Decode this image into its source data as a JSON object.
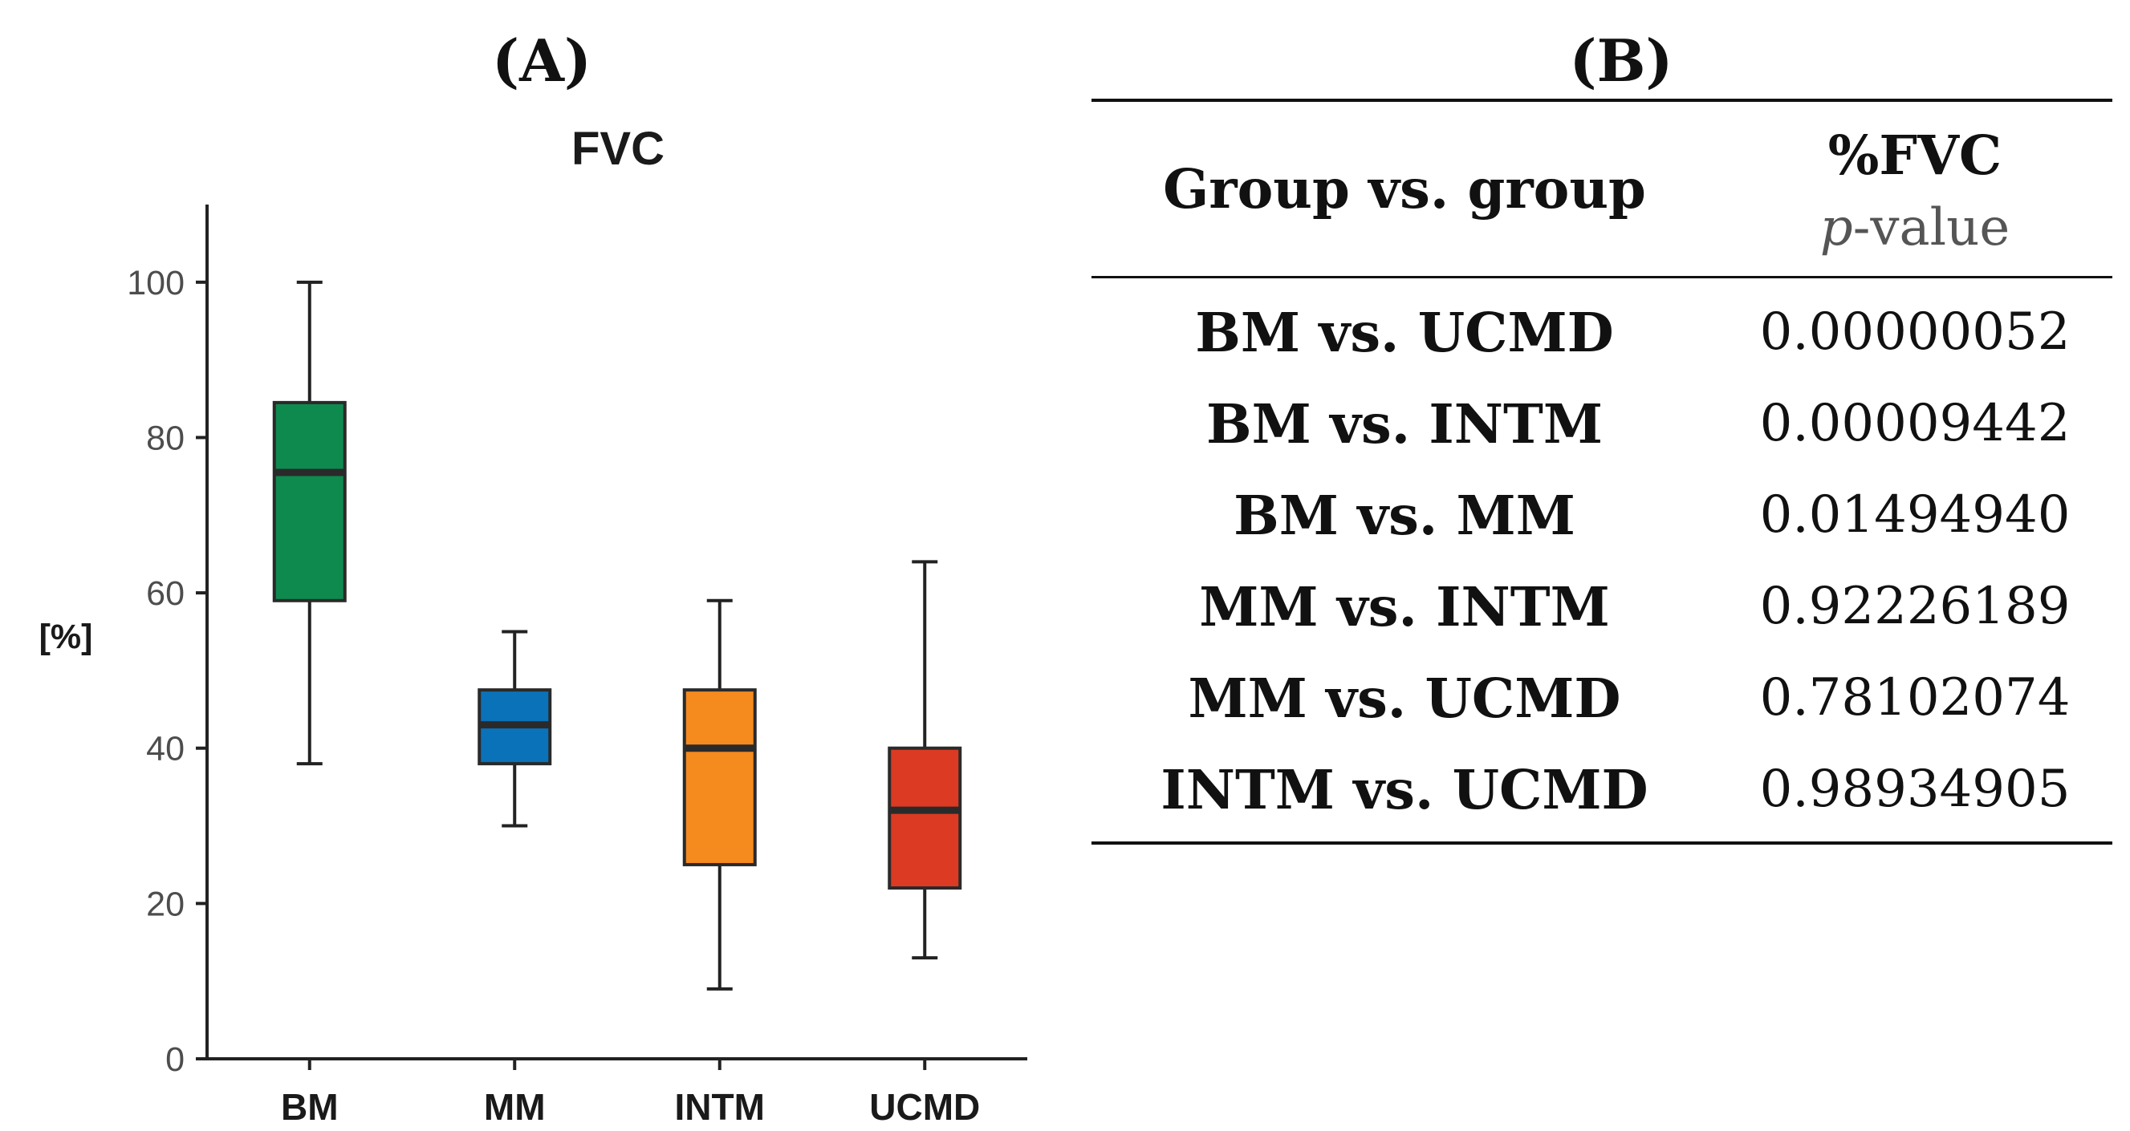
{
  "panel_a": {
    "label": "(A)"
  },
  "panel_b": {
    "label": "(B)"
  },
  "chart_data": {
    "type": "boxplot",
    "title": "FVC",
    "xlabel": "",
    "ylabel": "[%]",
    "ylim": [
      0,
      110
    ],
    "yticks": [
      0,
      20,
      40,
      60,
      80,
      100
    ],
    "categories": [
      "BM",
      "MM",
      "INTM",
      "UCMD"
    ],
    "colors": [
      "#0e8a4f",
      "#0a72b8",
      "#f58a1f",
      "#dc3a22"
    ],
    "boxes": [
      {
        "category": "BM",
        "min": 38,
        "q1": 59,
        "median": 75.5,
        "q3": 84.5,
        "max": 100
      },
      {
        "category": "MM",
        "min": 30,
        "q1": 38,
        "median": 43,
        "q3": 47.5,
        "max": 55
      },
      {
        "category": "INTM",
        "min": 9,
        "q1": 25,
        "median": 40,
        "q3": 47.5,
        "max": 59
      },
      {
        "category": "UCMD",
        "min": 13,
        "q1": 22,
        "median": 32,
        "q3": 40,
        "max": 64
      }
    ]
  },
  "table": {
    "header_group": "Group vs. group",
    "header_metric": "%FVC",
    "header_p_italic": "p",
    "header_p_rest": "-value",
    "rows": [
      {
        "comparison": "BM vs. UCMD",
        "p": "0.00000052"
      },
      {
        "comparison": "BM vs. INTM",
        "p": "0.00009442"
      },
      {
        "comparison": "BM vs. MM",
        "p": "0.01494940"
      },
      {
        "comparison": "MM vs. INTM",
        "p": "0.92226189"
      },
      {
        "comparison": "MM vs. UCMD",
        "p": "0.78102074"
      },
      {
        "comparison": "INTM vs. UCMD",
        "p": "0.98934905"
      }
    ]
  }
}
